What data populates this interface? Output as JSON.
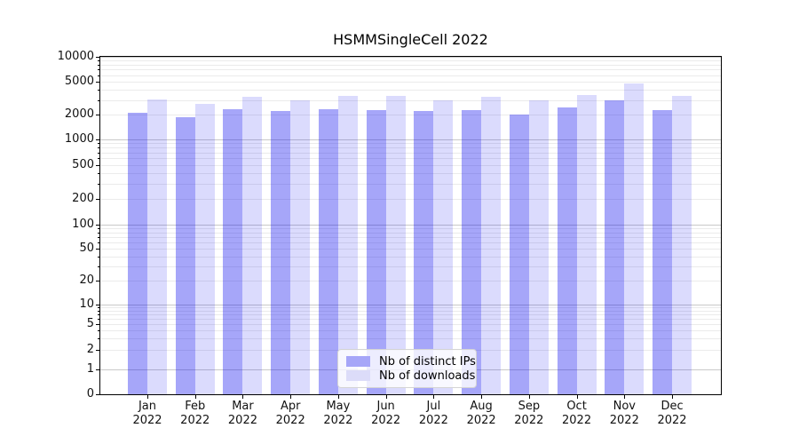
{
  "title": "HSMMSingleCell 2022",
  "chart_data": {
    "type": "bar",
    "title": "HSMMSingleCell 2022",
    "categories": [
      "Jan 2022",
      "Feb 2022",
      "Mar 2022",
      "Apr 2022",
      "May 2022",
      "Jun 2022",
      "Jul 2022",
      "Aug 2022",
      "Sep 2022",
      "Oct 2022",
      "Nov 2022",
      "Dec 2022"
    ],
    "series": [
      {
        "name": "Nb of distinct IPs",
        "fill": "rgba(0,0,238,0.35)",
        "swatch": "#a6a6f8",
        "values": [
          2100,
          1850,
          2300,
          2200,
          2300,
          2250,
          2200,
          2250,
          2000,
          2450,
          3000,
          2250
        ]
      },
      {
        "name": "Nb of downloads",
        "fill": "rgba(0,0,238,0.14)",
        "swatch": "#dcdcf9",
        "values": [
          3050,
          2700,
          3300,
          2950,
          3350,
          3350,
          3000,
          3300,
          2950,
          3450,
          4700,
          3350
        ]
      }
    ],
    "yscale": "symlog",
    "ylim": [
      0,
      10000
    ],
    "yticks": [
      0,
      1,
      2,
      5,
      10,
      20,
      50,
      100,
      200,
      500,
      1000,
      2000,
      5000,
      10000
    ],
    "yticks_minor": [
      3,
      4,
      6,
      7,
      8,
      9,
      30,
      40,
      60,
      70,
      80,
      90,
      300,
      400,
      600,
      700,
      800,
      900,
      3000,
      4000,
      6000,
      7000,
      8000,
      9000
    ],
    "xlabel": "",
    "ylabel": "",
    "grid": true,
    "legend_position": "lower center",
    "grid_major_color": "#c9c9c9",
    "grid_minor_color": "#ebebeb",
    "background": "#ffffff"
  }
}
